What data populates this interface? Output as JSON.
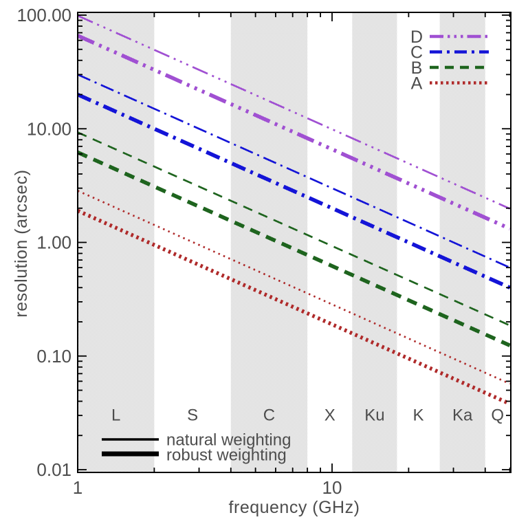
{
  "chart_data": {
    "type": "line",
    "title": "",
    "xlabel": "frequency (GHz)",
    "ylabel": "resolution (arcsec)",
    "x_scale": "log",
    "y_scale": "log",
    "xlim": [
      1,
      50
    ],
    "ylim": [
      0.01,
      100
    ],
    "grid": false,
    "relation": "resolution_arcsec = value_at_1GHz / frequency_GHz (straight lines of slope -1 in log-log)",
    "x_ticks": {
      "major": [
        1,
        10
      ],
      "major_labels": [
        "1",
        "10"
      ],
      "minor": [
        2,
        3,
        4,
        5,
        6,
        7,
        8,
        9,
        20,
        30,
        40,
        50
      ]
    },
    "y_ticks": {
      "major": [
        100,
        10,
        1,
        0.1,
        0.01
      ],
      "major_labels": [
        "100.00",
        "10.00",
        "1.00",
        "0.10",
        "0.01"
      ],
      "minor_per_decade": [
        2,
        3,
        4,
        5,
        6,
        7,
        8,
        9
      ]
    },
    "bands": [
      {
        "name": "L",
        "from_ghz": 1,
        "to_ghz": 2,
        "shaded": true
      },
      {
        "name": "S",
        "from_ghz": 2,
        "to_ghz": 4,
        "shaded": false
      },
      {
        "name": "C",
        "from_ghz": 4,
        "to_ghz": 8,
        "shaded": true
      },
      {
        "name": "X",
        "from_ghz": 8,
        "to_ghz": 12,
        "shaded": false
      },
      {
        "name": "Ku",
        "from_ghz": 12,
        "to_ghz": 18,
        "shaded": true
      },
      {
        "name": "K",
        "from_ghz": 18,
        "to_ghz": 26.5,
        "shaded": false
      },
      {
        "name": "Ka",
        "from_ghz": 26.5,
        "to_ghz": 40,
        "shaded": true
      },
      {
        "name": "Q",
        "from_ghz": 40,
        "to_ghz": 50,
        "shaded": false
      }
    ],
    "band_fill_color": "#c9c9c9",
    "series": [
      {
        "config": "D",
        "weighting": "natural",
        "color": "#A050D2",
        "linestyle": "dash-dot-dot-dot",
        "weight": "thin",
        "x": [
          1,
          50
        ],
        "values": [
          99,
          1.98
        ]
      },
      {
        "config": "D",
        "weighting": "robust",
        "color": "#A050D2",
        "linestyle": "dash-dot-dot-dot",
        "weight": "thick",
        "x": [
          1,
          50
        ],
        "values": [
          66,
          1.32
        ]
      },
      {
        "config": "C",
        "weighting": "natural",
        "color": "#1414D7",
        "linestyle": "dash-dot",
        "weight": "thin",
        "x": [
          1,
          50
        ],
        "values": [
          30,
          0.6
        ]
      },
      {
        "config": "C",
        "weighting": "robust",
        "color": "#1414D7",
        "linestyle": "dash-dot",
        "weight": "thick",
        "x": [
          1,
          50
        ],
        "values": [
          20,
          0.4
        ]
      },
      {
        "config": "B",
        "weighting": "natural",
        "color": "#1E641E",
        "linestyle": "dashed",
        "weight": "thin",
        "x": [
          1,
          50
        ],
        "values": [
          9.3,
          0.186
        ]
      },
      {
        "config": "B",
        "weighting": "robust",
        "color": "#1E641E",
        "linestyle": "dashed",
        "weight": "thick",
        "x": [
          1,
          50
        ],
        "values": [
          6.2,
          0.124
        ]
      },
      {
        "config": "A",
        "weighting": "natural",
        "color": "#AF2A2A",
        "linestyle": "dotted",
        "weight": "thin",
        "x": [
          1,
          50
        ],
        "values": [
          2.85,
          0.057
        ]
      },
      {
        "config": "A",
        "weighting": "robust",
        "color": "#AF2A2A",
        "linestyle": "dotted",
        "weight": "thick",
        "x": [
          1,
          50
        ],
        "values": [
          1.9,
          0.038
        ]
      }
    ],
    "legend_position": "top-right"
  },
  "config_legend": {
    "entries": [
      {
        "label": "D",
        "color": "#A050D2",
        "linestyle": "dash-dot-dot-dot"
      },
      {
        "label": "C",
        "color": "#1414D7",
        "linestyle": "dash-dot"
      },
      {
        "label": "B",
        "color": "#1E641E",
        "linestyle": "dashed"
      },
      {
        "label": "A",
        "color": "#AF2A2A",
        "linestyle": "dotted"
      }
    ]
  },
  "weighting_legend": {
    "natural_label": "natural weighting",
    "robust_label": "robust weighting",
    "line_color": "#000000"
  }
}
